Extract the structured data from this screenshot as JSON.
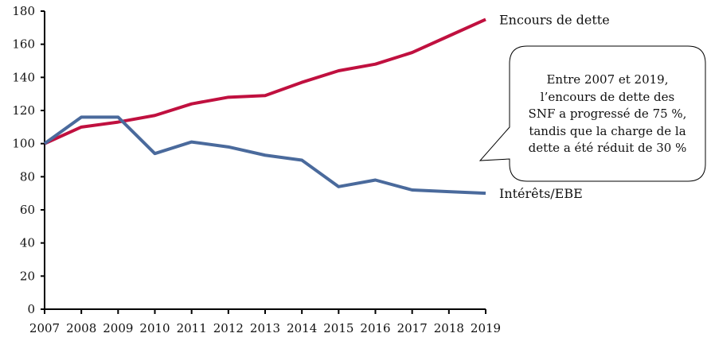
{
  "chart_data": {
    "type": "line",
    "title": "",
    "xlabel": "",
    "ylabel": "",
    "x": [
      2007,
      2008,
      2009,
      2010,
      2011,
      2012,
      2013,
      2014,
      2015,
      2016,
      2017,
      2018,
      2019
    ],
    "x_tick_labels": [
      "2007",
      "2008",
      "2009",
      "2010",
      "2011",
      "2012",
      "2013",
      "2014",
      "2015",
      "2016",
      "2017",
      "2018",
      "2019"
    ],
    "y_tick_labels": [
      "0",
      "20",
      "40",
      "60",
      "80",
      "100",
      "120",
      "140",
      "160",
      "180"
    ],
    "y_ticks": [
      0,
      20,
      40,
      60,
      80,
      100,
      120,
      140,
      160,
      180
    ],
    "ylim": [
      0,
      180
    ],
    "grid": false,
    "legend": "inline-right",
    "series": [
      {
        "name": "Encours de dette",
        "color": "#C0103F",
        "values": [
          100,
          110,
          113,
          117,
          124,
          128,
          129,
          137,
          144,
          148,
          155,
          165,
          175
        ]
      },
      {
        "name": "Intérêts/EBE",
        "color": "#4A6A9C",
        "values": [
          100,
          116,
          116,
          94,
          101,
          98,
          93,
          90,
          74,
          78,
          72,
          71,
          70
        ]
      }
    ],
    "annotations": [
      {
        "type": "callout",
        "lines": [
          "Entre 2007 et 2019,",
          "l’encours de dette des",
          "SNF a progressé de 75 %,",
          "tandis que la charge de la",
          "dette a été réduit de 30 %"
        ],
        "points_to": "Intérêts/EBE 2019"
      }
    ]
  }
}
